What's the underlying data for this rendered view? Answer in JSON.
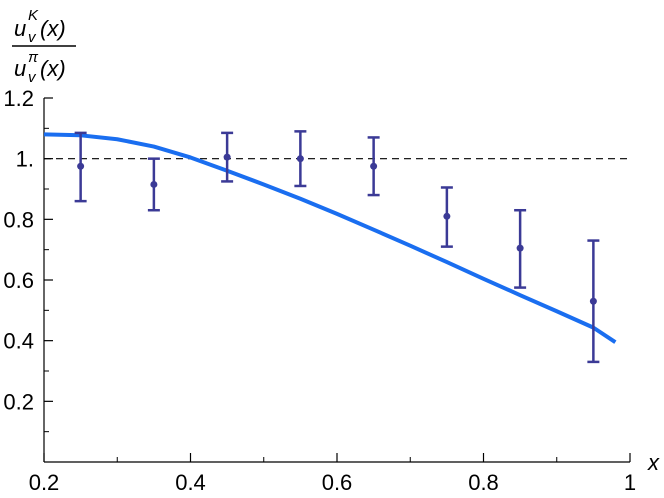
{
  "chart_data": {
    "type": "line",
    "title": "",
    "xlabel": "x",
    "ylabel": {
      "numerator": {
        "base": "u",
        "sup": "K",
        "sub": "v",
        "arg": "(x)"
      },
      "denominator": {
        "base": "u",
        "sup": "π",
        "sub": "v",
        "arg": "(x)"
      }
    },
    "xlim": [
      0.2,
      1.0
    ],
    "ylim": [
      0.0,
      1.2
    ],
    "x_ticks": [
      "0.2",
      "0.4",
      "0.6",
      "0.8",
      "1"
    ],
    "y_ticks": [
      "0.2",
      "0.4",
      "0.6",
      "0.8",
      "1.",
      "1.2"
    ],
    "reference_line": {
      "y": 1.0,
      "style": "dashed",
      "color": "#000000"
    },
    "series": [
      {
        "type": "line",
        "color": "#1a6ef0",
        "x": [
          0.2,
          0.25,
          0.3,
          0.35,
          0.4,
          0.45,
          0.5,
          0.55,
          0.6,
          0.65,
          0.7,
          0.75,
          0.8,
          0.85,
          0.9,
          0.95,
          0.98
        ],
        "y": [
          1.08,
          1.077,
          1.064,
          1.04,
          1.004,
          0.96,
          0.915,
          0.868,
          0.818,
          0.766,
          0.713,
          0.659,
          0.604,
          0.55,
          0.497,
          0.443,
          0.395
        ]
      },
      {
        "type": "errorbar",
        "color": "#3b3a96",
        "x": [
          0.25,
          0.35,
          0.45,
          0.55,
          0.65,
          0.75,
          0.85,
          0.95
        ],
        "y": [
          0.975,
          0.915,
          1.005,
          1.0,
          0.975,
          0.81,
          0.705,
          0.53
        ],
        "err_low": [
          0.115,
          0.085,
          0.08,
          0.09,
          0.095,
          0.1,
          0.13,
          0.2
        ],
        "err_high": [
          0.11,
          0.085,
          0.08,
          0.09,
          0.095,
          0.095,
          0.125,
          0.2
        ]
      }
    ]
  }
}
